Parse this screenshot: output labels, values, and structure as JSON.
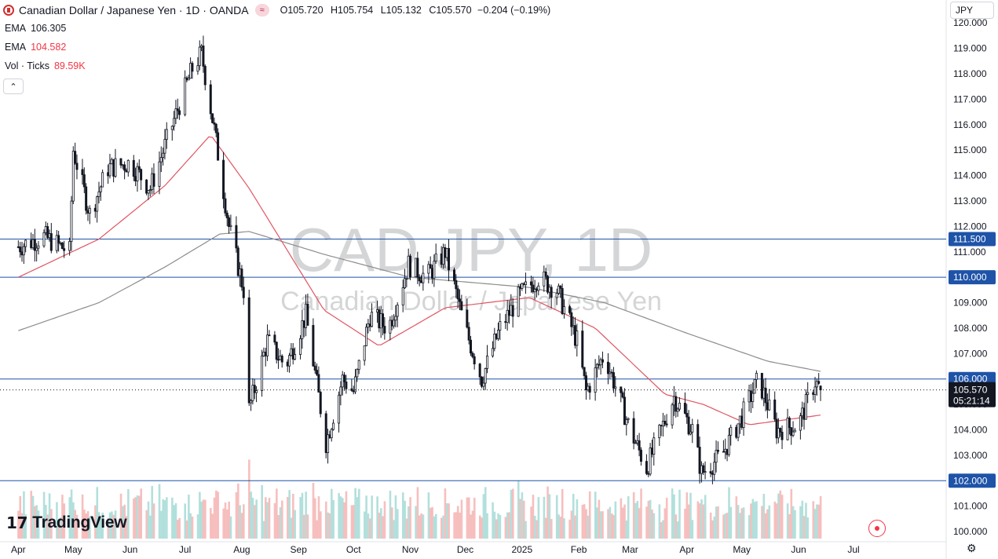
{
  "header": {
    "symbol_title": "Canadian Dollar / Japanese Yen · 1D · OANDA",
    "ohlc": {
      "o_key": "O",
      "o": "105.720",
      "h_key": "H",
      "h": "105.754",
      "l_key": "L",
      "l": "105.132",
      "c_key": "C",
      "c": "105.570",
      "change": "−0.204 (−0.19%)"
    }
  },
  "indicators": [
    {
      "label": "EMA",
      "value": "106.305",
      "color": "#131722"
    },
    {
      "label": "EMA",
      "value": "104.582",
      "color": "#f23645"
    },
    {
      "label": "Vol · Ticks",
      "value": "89.59K",
      "color": "#f23645"
    }
  ],
  "currency_button": "JPY",
  "watermark": {
    "symbol": "CAD JPY, 1D",
    "name": "Canadian Dollar / Japanese Yen"
  },
  "branding": "TradingView",
  "colors": {
    "candle": "#131722",
    "ema_fast": "#e05561",
    "ema_slow": "#8d8d8d",
    "hline": "#1e53a8",
    "vol_up": "#a6dbd6",
    "vol_down": "#f6b4b4",
    "axis_text": "#131722",
    "current_price_bg": "#131722"
  },
  "chart_data": {
    "type": "candlestick",
    "y_axis_ticks": [
      "100.000",
      "101.000",
      "102.000",
      "103.000",
      "104.000",
      "105.000",
      "106.000",
      "107.000",
      "108.000",
      "109.000",
      "110.000",
      "111.000",
      "112.000",
      "113.000",
      "114.000",
      "115.000",
      "116.000",
      "117.000",
      "118.000",
      "119.000",
      "120.000"
    ],
    "ylim": [
      99.6,
      120.1
    ],
    "x_axis_ticks": [
      "Apr",
      "May",
      "Jun",
      "Jul",
      "Aug",
      "Sep",
      "Oct",
      "Nov",
      "Dec",
      "2025",
      "Feb",
      "Mar",
      "Apr",
      "May",
      "Jun",
      "Jul"
    ],
    "horizontal_levels": [
      {
        "value": 111.5,
        "label": "111.500"
      },
      {
        "value": 110.0,
        "label": "110.000"
      },
      {
        "value": 106.0,
        "label": "106.000"
      },
      {
        "value": 102.0,
        "label": "102.000"
      }
    ],
    "current_price": {
      "value": 105.57,
      "label": "105.570",
      "countdown": "05:21:14"
    },
    "close_path_approx": [
      [
        "2024-04-01",
        111.2
      ],
      [
        "2024-04-15",
        111.6
      ],
      [
        "2024-04-29",
        111.0
      ],
      [
        "2024-05-01",
        115.0
      ],
      [
        "2024-05-10",
        112.5
      ],
      [
        "2024-05-20",
        114.3
      ],
      [
        "2024-06-01",
        114.5
      ],
      [
        "2024-06-12",
        113.5
      ],
      [
        "2024-06-25",
        116.2
      ],
      [
        "2024-07-05",
        118.2
      ],
      [
        "2024-07-10",
        118.8
      ],
      [
        "2024-07-17",
        115.8
      ],
      [
        "2024-07-25",
        112.0
      ],
      [
        "2024-08-02",
        109.5
      ],
      [
        "2024-08-05",
        104.8
      ],
      [
        "2024-08-15",
        107.5
      ],
      [
        "2024-08-25",
        106.5
      ],
      [
        "2024-09-05",
        108.5
      ],
      [
        "2024-09-16",
        103.5
      ],
      [
        "2024-09-25",
        106.0
      ],
      [
        "2024-10-01",
        105.5
      ],
      [
        "2024-10-10",
        108.5
      ],
      [
        "2024-10-20",
        108.0
      ],
      [
        "2024-10-31",
        110.5
      ],
      [
        "2024-11-10",
        110.0
      ],
      [
        "2024-11-20",
        111.0
      ],
      [
        "2024-12-01",
        108.0
      ],
      [
        "2024-12-10",
        106.0
      ],
      [
        "2024-12-20",
        108.0
      ],
      [
        "2024-12-31",
        109.3
      ],
      [
        "2025-01-10",
        110.0
      ],
      [
        "2025-01-20",
        109.5
      ],
      [
        "2025-01-31",
        107.5
      ],
      [
        "2025-02-05",
        105.5
      ],
      [
        "2025-02-15",
        107.0
      ],
      [
        "2025-03-01",
        104.0
      ],
      [
        "2025-03-10",
        102.5
      ],
      [
        "2025-03-25",
        105.3
      ],
      [
        "2025-04-04",
        104.0
      ],
      [
        "2025-04-09",
        102.3
      ],
      [
        "2025-04-20",
        103.0
      ],
      [
        "2025-05-01",
        104.5
      ],
      [
        "2025-05-10",
        106.0
      ],
      [
        "2025-05-20",
        104.0
      ],
      [
        "2025-06-01",
        104.2
      ],
      [
        "2025-06-10",
        105.9
      ],
      [
        "2025-06-13",
        105.57
      ]
    ],
    "ema_fast_approx": [
      [
        "2024-04-01",
        110.0
      ],
      [
        "2024-05-15",
        111.5
      ],
      [
        "2024-06-20",
        113.6
      ],
      [
        "2024-07-15",
        115.6
      ],
      [
        "2024-08-05",
        113.5
      ],
      [
        "2024-09-15",
        108.7
      ],
      [
        "2024-10-15",
        107.3
      ],
      [
        "2024-11-20",
        108.8
      ],
      [
        "2025-01-05",
        109.2
      ],
      [
        "2025-02-10",
        108.0
      ],
      [
        "2025-03-20",
        105.4
      ],
      [
        "2025-04-10",
        105.0
      ],
      [
        "2025-05-05",
        104.2
      ],
      [
        "2025-06-13",
        104.58
      ]
    ],
    "ema_slow_approx": [
      [
        "2024-04-01",
        107.9
      ],
      [
        "2024-05-15",
        109.0
      ],
      [
        "2024-06-20",
        110.4
      ],
      [
        "2024-07-20",
        111.7
      ],
      [
        "2024-08-05",
        111.8
      ],
      [
        "2024-09-15",
        110.9
      ],
      [
        "2024-11-01",
        110.0
      ],
      [
        "2025-01-05",
        109.6
      ],
      [
        "2025-02-15",
        109.0
      ],
      [
        "2025-04-01",
        107.8
      ],
      [
        "2025-05-15",
        106.7
      ],
      [
        "2025-06-13",
        106.3
      ]
    ]
  }
}
